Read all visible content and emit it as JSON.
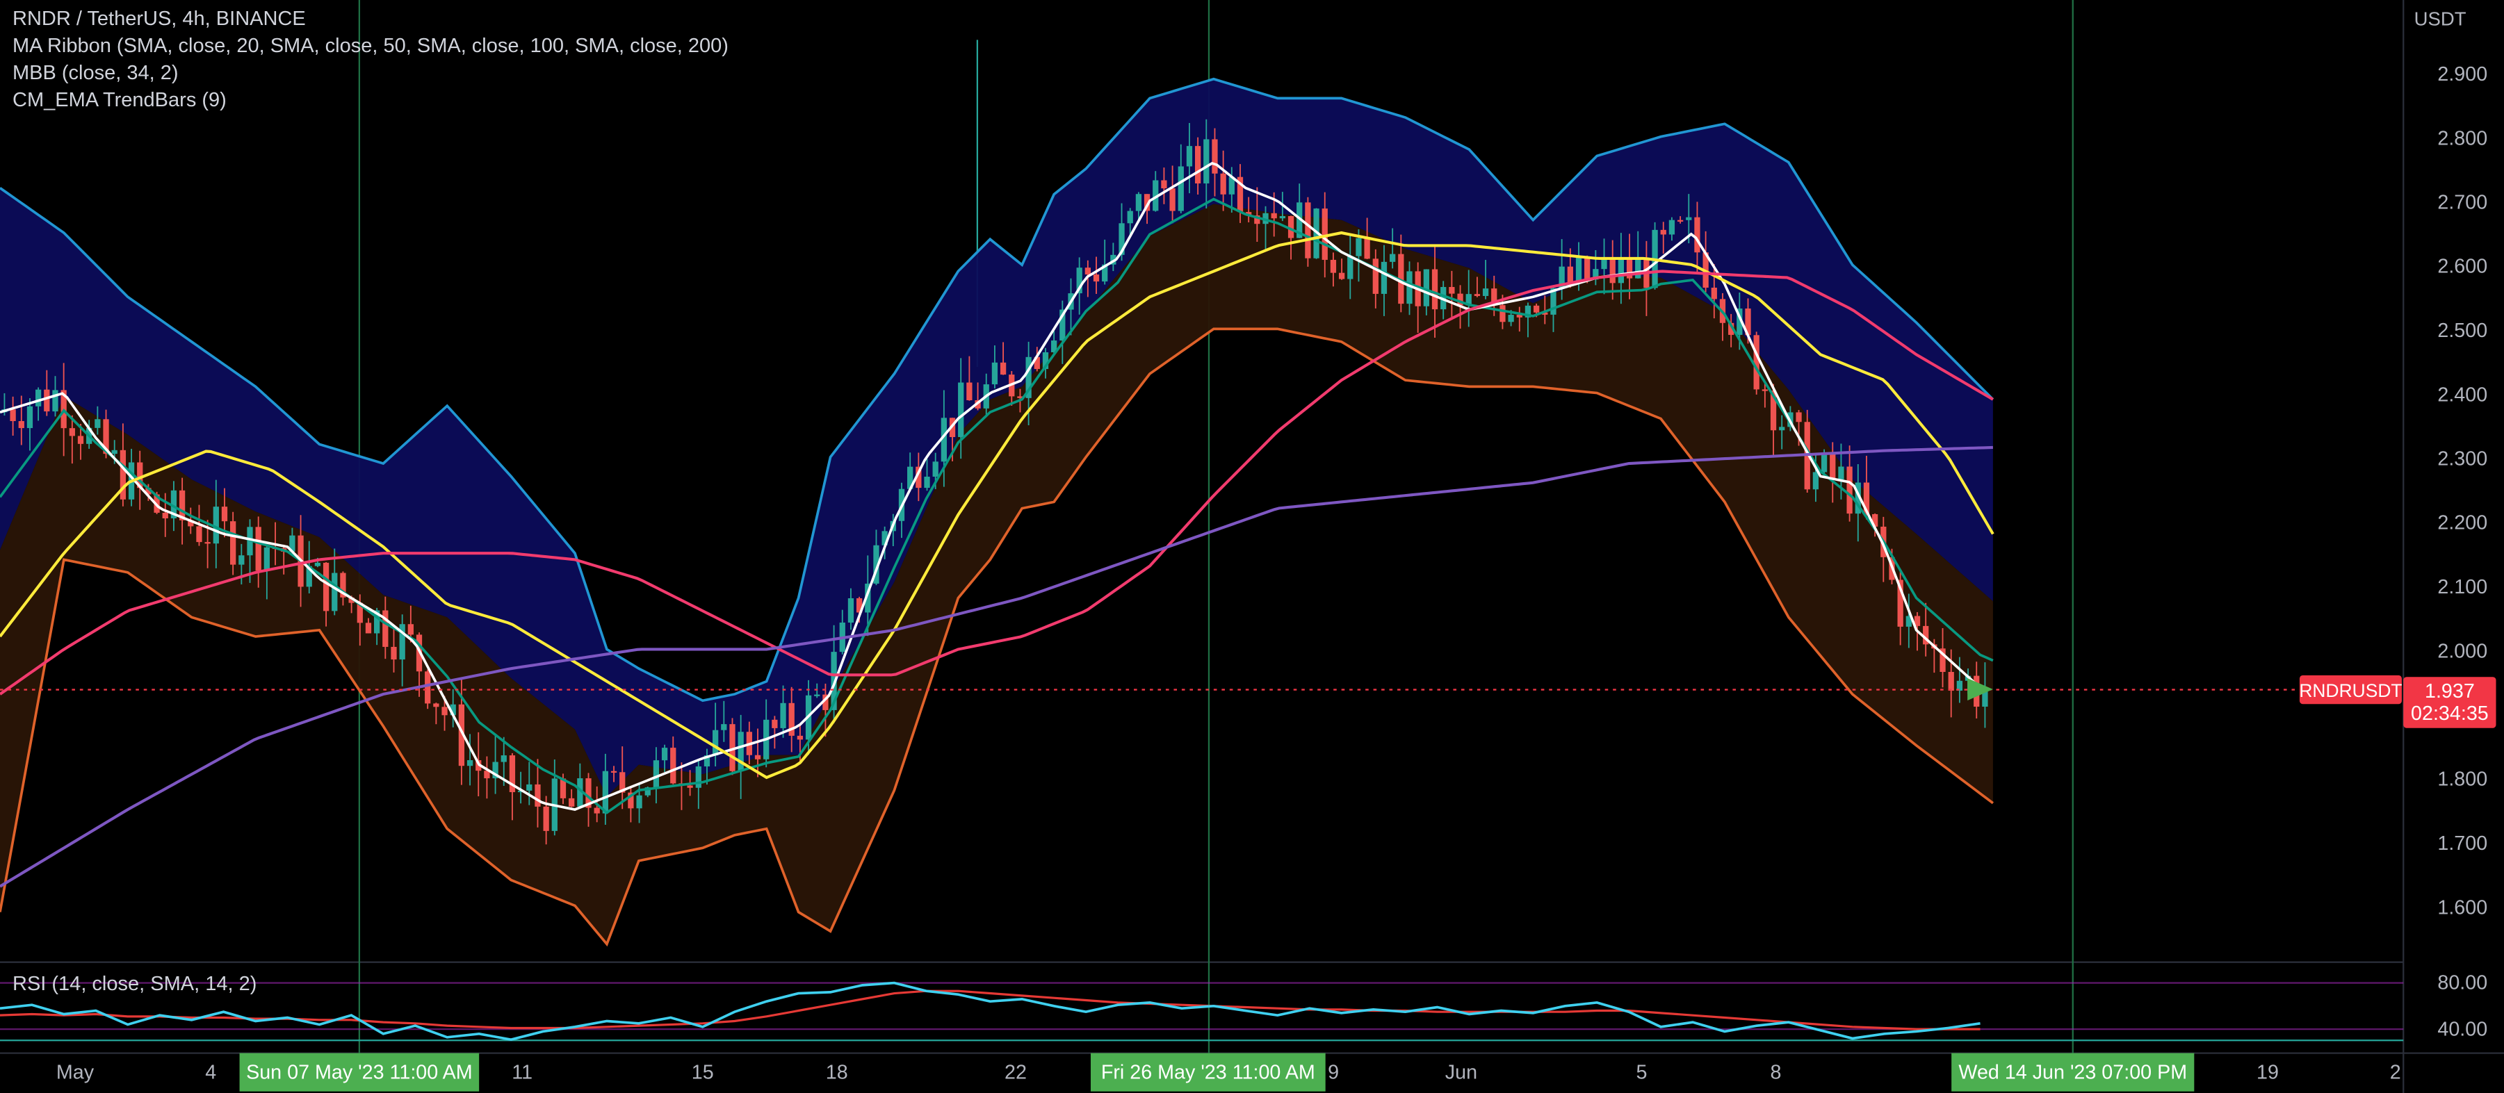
{
  "header": {
    "symbol_line": "RNDR / TetherUS, 4h, BINANCE",
    "indicators": [
      "MA Ribbon (SMA, close, 20, SMA, close, 50, SMA, close, 100, SMA, close, 200)",
      "MBB (close, 34, 2)",
      "CM_EMA TrendBars (9)"
    ]
  },
  "rsi_panel": {
    "label": "RSI (14, close, SMA, 14, 2)",
    "levels": [
      "80.00",
      "40.00"
    ]
  },
  "price_axis": {
    "currency": "USDT",
    "ticks": [
      "2.900",
      "2.800",
      "2.700",
      "2.600",
      "2.500",
      "2.400",
      "2.300",
      "2.200",
      "2.100",
      "2.000",
      "1.800",
      "1.700",
      "1.600"
    ]
  },
  "last_price": {
    "symbol": "RNDRUSDT",
    "price": "1.937",
    "countdown": "02:34:35"
  },
  "time_axis": {
    "labels": [
      "May",
      "4",
      "11",
      "15",
      "18",
      "22",
      "9",
      "Jun",
      "5",
      "8",
      "19",
      "2"
    ],
    "highlights": [
      "Sun 07 May '23   11:00 AM",
      "Fri 26 May '23   11:00 AM",
      "Wed 14 Jun '23   07:00 PM"
    ]
  },
  "colors": {
    "up": "#26a69a",
    "down": "#ef5350",
    "ma20": "#ffffff",
    "ma50": "#ffeb3b",
    "ma100": "#f23b6e",
    "ma200": "#7e57c2",
    "mbb_basis": "#089981",
    "mbb_upper": "#2196d3",
    "mbb_lower": "#e0622a",
    "rsi": "#3fd0ef",
    "rsi_ma": "#e53935",
    "price_tag": "#f23645",
    "crosshair_tag": "#4caf50"
  },
  "chart_data": {
    "type": "candlestick",
    "symbol": "RNDR / TetherUS",
    "interval": "4h",
    "ylim": [
      1.53,
      2.96
    ],
    "last_price": 1.937,
    "series": [
      {
        "name": "SMA 20",
        "x": [
          0,
          40,
          60,
          100,
          140,
          180,
          200,
          240,
          260,
          300,
          340,
          360,
          400,
          440,
          480,
          500,
          520,
          560,
          580,
          600,
          620,
          640,
          660,
          680,
          700,
          720,
          760,
          780,
          800,
          840,
          880,
          920,
          960,
          1000,
          1030,
          1060,
          1080,
          1100,
          1120,
          1140,
          1160,
          1180,
          1200,
          1240
        ],
        "values": [
          2.37,
          2.4,
          2.33,
          2.22,
          2.18,
          2.16,
          2.11,
          2.05,
          2.01,
          1.82,
          1.76,
          1.75,
          1.79,
          1.83,
          1.86,
          1.88,
          1.93,
          2.2,
          2.3,
          2.36,
          2.4,
          2.42,
          2.5,
          2.58,
          2.61,
          2.7,
          2.76,
          2.72,
          2.7,
          2.62,
          2.57,
          2.53,
          2.55,
          2.58,
          2.59,
          2.65,
          2.57,
          2.46,
          2.36,
          2.27,
          2.26,
          2.16,
          2.03,
          1.94
        ]
      },
      {
        "name": "SMA 50",
        "x": [
          0,
          40,
          80,
          130,
          170,
          200,
          240,
          280,
          320,
          360,
          400,
          440,
          460,
          480,
          500,
          520,
          560,
          600,
          640,
          680,
          720,
          760,
          800,
          840,
          880,
          920,
          960,
          1000,
          1030,
          1060,
          1100,
          1140,
          1180,
          1220,
          1248
        ],
        "values": [
          2.02,
          2.15,
          2.26,
          2.31,
          2.28,
          2.23,
          2.16,
          2.07,
          2.04,
          1.98,
          1.92,
          1.86,
          1.83,
          1.8,
          1.82,
          1.88,
          2.03,
          2.21,
          2.36,
          2.48,
          2.55,
          2.59,
          2.63,
          2.65,
          2.63,
          2.63,
          2.62,
          2.61,
          2.61,
          2.6,
          2.55,
          2.46,
          2.42,
          2.3,
          2.18
        ]
      },
      {
        "name": "SMA 100",
        "x": [
          0,
          40,
          80,
          120,
          160,
          200,
          240,
          280,
          320,
          360,
          400,
          440,
          480,
          520,
          560,
          600,
          640,
          680,
          720,
          760,
          800,
          840,
          880,
          920,
          960,
          1000,
          1040,
          1080,
          1120,
          1160,
          1200,
          1248
        ],
        "values": [
          1.93,
          2.0,
          2.06,
          2.09,
          2.12,
          2.14,
          2.15,
          2.15,
          2.15,
          2.14,
          2.11,
          2.06,
          2.01,
          1.96,
          1.96,
          2.0,
          2.02,
          2.06,
          2.13,
          2.24,
          2.34,
          2.42,
          2.48,
          2.53,
          2.56,
          2.58,
          2.59,
          2.585,
          2.58,
          2.53,
          2.46,
          2.39
        ]
      },
      {
        "name": "SMA 200",
        "x": [
          0,
          80,
          160,
          240,
          320,
          400,
          480,
          560,
          640,
          720,
          800,
          880,
          960,
          1020,
          1100,
          1180,
          1248
        ],
        "values": [
          1.63,
          1.75,
          1.86,
          1.93,
          1.97,
          2.0,
          2.0,
          2.03,
          2.08,
          2.15,
          2.22,
          2.24,
          2.26,
          2.29,
          2.3,
          2.31,
          2.315
        ]
      }
    ],
    "bands": {
      "x": [
        0,
        40,
        80,
        120,
        160,
        200,
        240,
        280,
        320,
        360,
        380,
        400,
        440,
        460,
        480,
        500,
        520,
        560,
        600,
        620,
        640,
        660,
        680,
        720,
        760,
        800,
        840,
        880,
        920,
        960,
        1000,
        1040,
        1080,
        1120,
        1160,
        1200,
        1248
      ],
      "upper": [
        2.72,
        2.65,
        2.55,
        2.48,
        2.41,
        2.32,
        2.29,
        2.38,
        2.27,
        2.15,
        2.0,
        1.97,
        1.92,
        1.93,
        1.95,
        2.08,
        2.3,
        2.43,
        2.59,
        2.64,
        2.6,
        2.71,
        2.75,
        2.86,
        2.89,
        2.86,
        2.86,
        2.83,
        2.78,
        2.67,
        2.77,
        2.8,
        2.82,
        2.76,
        2.6,
        2.51,
        2.39
      ],
      "lower": [
        1.59,
        2.14,
        2.12,
        2.05,
        2.02,
        2.03,
        1.88,
        1.72,
        1.64,
        1.6,
        1.54,
        1.67,
        1.69,
        1.71,
        1.72,
        1.59,
        1.56,
        1.78,
        2.08,
        2.14,
        2.22,
        2.23,
        2.3,
        2.43,
        2.5,
        2.5,
        2.48,
        2.42,
        2.41,
        2.41,
        2.4,
        2.36,
        2.23,
        2.05,
        1.93,
        1.85,
        1.76
      ]
    },
    "rsi": {
      "ylim": [
        20,
        100
      ],
      "levels": [
        80,
        40
      ],
      "x": [
        0,
        20,
        40,
        60,
        80,
        100,
        120,
        140,
        160,
        180,
        200,
        220,
        240,
        260,
        280,
        300,
        320,
        340,
        360,
        380,
        400,
        420,
        440,
        460,
        480,
        500,
        520,
        540,
        560,
        580,
        600,
        620,
        640,
        660,
        680,
        700,
        720,
        740,
        760,
        780,
        800,
        820,
        840,
        860,
        880,
        900,
        920,
        940,
        960,
        980,
        1000,
        1020,
        1040,
        1060,
        1080,
        1100,
        1120,
        1140,
        1160,
        1180,
        1200,
        1220,
        1240
      ],
      "values": [
        58,
        61,
        53,
        56,
        44,
        52,
        48,
        55,
        47,
        50,
        44,
        52,
        36,
        43,
        33,
        36,
        31,
        38,
        42,
        47,
        45,
        50,
        42,
        55,
        64,
        71,
        72,
        78,
        80,
        73,
        70,
        64,
        66,
        60,
        55,
        61,
        63,
        58,
        60,
        56,
        52,
        58,
        54,
        57,
        55,
        59,
        53,
        56,
        54,
        60,
        63,
        55,
        42,
        46,
        38,
        43,
        46,
        39,
        32,
        36,
        38,
        41,
        45
      ],
      "ma": [
        52,
        53,
        52,
        53,
        51,
        51,
        50,
        50,
        49,
        49,
        48,
        48,
        46,
        45,
        43,
        42,
        41,
        41,
        41,
        42,
        43,
        44,
        45,
        47,
        51,
        56,
        61,
        66,
        71,
        73,
        73,
        71,
        69,
        67,
        65,
        63,
        62,
        61,
        60,
        59,
        58,
        57,
        57,
        56,
        56,
        55,
        55,
        55,
        55,
        55,
        56,
        56,
        54,
        52,
        50,
        48,
        46,
        44,
        42,
        41,
        40,
        40,
        40
      ]
    }
  }
}
